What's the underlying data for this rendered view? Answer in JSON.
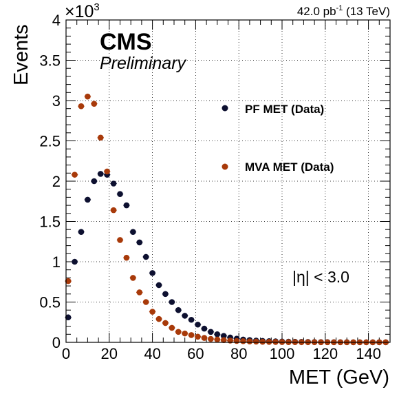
{
  "header": {
    "lumi_value": "42.0 pb",
    "lumi_sup": "-1",
    "energy": " (13 TeV)"
  },
  "labels": {
    "cms": "CMS",
    "preliminary": "Preliminary",
    "eta_cut": "|η| < 3.0",
    "y_multiplier_base": "×10",
    "y_multiplier_exp": "3"
  },
  "colors": {
    "pf": "#0d1030",
    "mva": "#a83a0a",
    "grid": "#000000"
  },
  "chart_data": {
    "type": "scatter",
    "xlabel": "MET (GeV)",
    "ylabel": "Events",
    "xlim": [
      0,
      150
    ],
    "ylim": [
      0,
      4000
    ],
    "xticks": [
      0,
      20,
      40,
      60,
      80,
      100,
      120,
      140
    ],
    "xtick_labels": [
      "0",
      "20",
      "40",
      "60",
      "80",
      "100",
      "120",
      "140"
    ],
    "yticks": [
      0,
      500,
      1000,
      1500,
      2000,
      2500,
      3000,
      3500,
      4000
    ],
    "ytick_labels": [
      "0",
      "0.5",
      "1",
      "1.5",
      "2",
      "2.5",
      "3",
      "3.5",
      "4"
    ],
    "grid": true,
    "legend_position": "right",
    "series": [
      {
        "name": "PF MET (Data)",
        "color": "#0d1030",
        "x": [
          1,
          4,
          7,
          10,
          13,
          16,
          19,
          22,
          25,
          28,
          31,
          34,
          37,
          40,
          43,
          46,
          49,
          52,
          55,
          58,
          61,
          64,
          67,
          70,
          73,
          76,
          79,
          82,
          85,
          88,
          91,
          94,
          97,
          100,
          103,
          106,
          109,
          112,
          115,
          118,
          121,
          124,
          127,
          130,
          133,
          136,
          139,
          142,
          145,
          148
        ],
        "y": [
          310,
          1000,
          1370,
          1770,
          2000,
          2090,
          2080,
          1970,
          1840,
          1700,
          1370,
          1240,
          1060,
          860,
          710,
          600,
          500,
          400,
          330,
          280,
          220,
          170,
          130,
          100,
          80,
          60,
          45,
          35,
          28,
          22,
          18,
          15,
          12,
          10,
          8,
          7,
          6,
          5,
          4,
          3,
          3,
          2,
          2,
          2,
          1,
          1,
          1,
          1,
          1,
          1
        ]
      },
      {
        "name": "MVA MET (Data)",
        "color": "#a83a0a",
        "x": [
          1,
          4,
          7,
          10,
          13,
          16,
          19,
          22,
          25,
          28,
          31,
          34,
          37,
          40,
          43,
          46,
          49,
          52,
          55,
          58,
          61,
          64,
          67,
          70,
          73,
          76,
          79,
          82,
          85,
          88,
          91,
          94,
          97,
          100,
          103,
          106,
          109,
          112,
          115,
          118,
          121,
          124,
          127,
          130,
          133,
          136,
          139,
          142,
          145,
          148
        ],
        "y": [
          760,
          2080,
          2930,
          3050,
          2960,
          2540,
          2120,
          1640,
          1270,
          1050,
          800,
          620,
          500,
          380,
          290,
          240,
          180,
          130,
          110,
          90,
          70,
          55,
          42,
          35,
          28,
          22,
          17,
          14,
          11,
          9,
          7,
          6,
          5,
          4,
          3,
          3,
          2,
          2,
          2,
          1,
          1,
          1,
          1,
          1,
          1,
          1,
          1,
          1,
          1,
          1
        ]
      }
    ]
  }
}
